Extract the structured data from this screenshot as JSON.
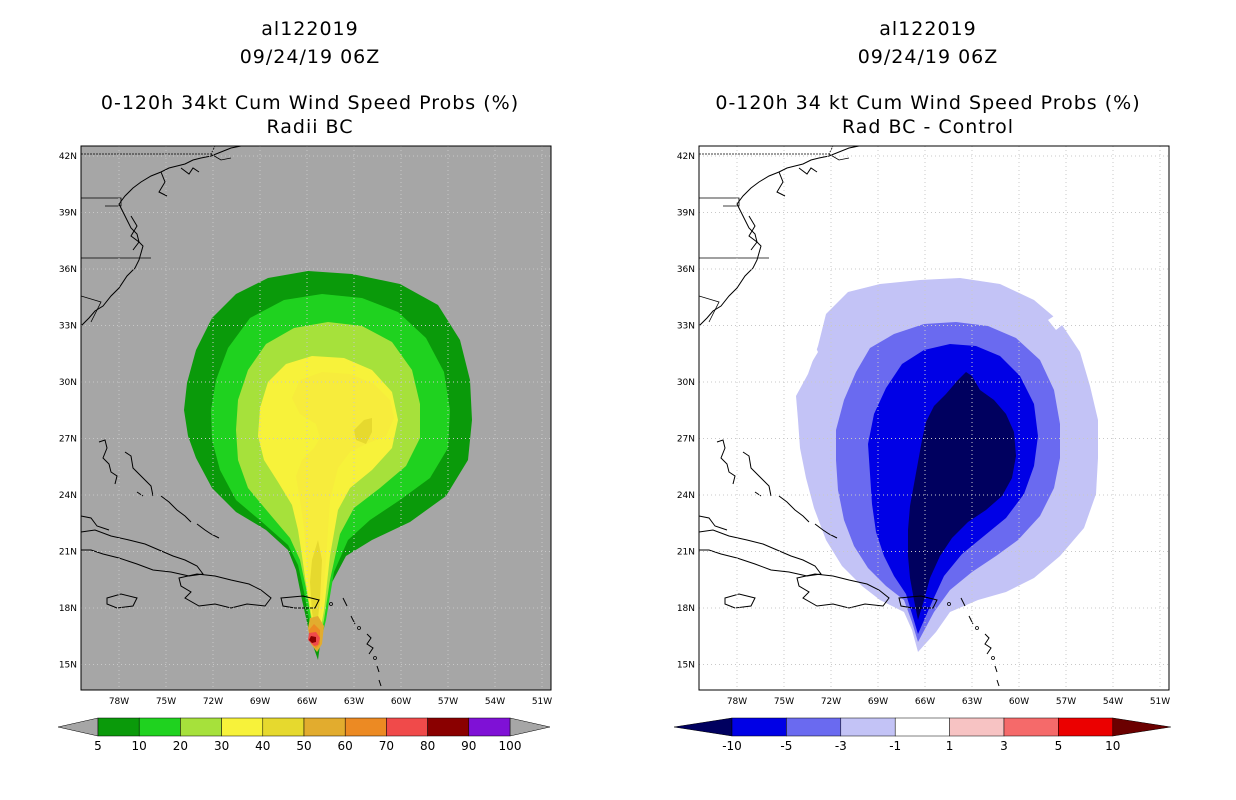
{
  "left_panel": {
    "title_line1": "al122019",
    "title_line2": "09/24/19 06Z",
    "title_line3": "0-120h 34kt Cum Wind Speed Probs (%)",
    "title_line4": "Radii BC",
    "background_color": "#a6a6a6",
    "colorbar": {
      "labels": [
        "5",
        "10",
        "20",
        "30",
        "40",
        "50",
        "60",
        "70",
        "80",
        "90",
        "100"
      ],
      "colors": [
        "#0a9a0a",
        "#1fd21f",
        "#a6e13b",
        "#f7f23a",
        "#e6d92e",
        "#e2ac2e",
        "#ec8a23",
        "#f04a4a",
        "#8a0000",
        "#7f11d6"
      ]
    }
  },
  "right_panel": {
    "title_line1": "al122019",
    "title_line2": "09/24/19 06Z",
    "title_line3": "0-120h 34 kt Cum Wind Speed Probs (%)",
    "title_line4": "Rad BC - Control",
    "background_color": "#ffffff",
    "colorbar": {
      "labels": [
        "-10",
        "-5",
        "-3",
        "-1",
        "1",
        "3",
        "5",
        "10"
      ],
      "colors": [
        "#00005f",
        "#0000e6",
        "#6a6af0",
        "#c3c3f6",
        "#ffffff",
        "#f7c3c3",
        "#f56a6a",
        "#eb0000",
        "#6b0000"
      ]
    }
  },
  "axes": {
    "lat_labels": [
      "42N",
      "39N",
      "36N",
      "33N",
      "30N",
      "27N",
      "24N",
      "21N",
      "18N",
      "15N"
    ],
    "lon_labels": [
      "78W",
      "75W",
      "72W",
      "69W",
      "66W",
      "63W",
      "60W",
      "57W",
      "54W",
      "51W"
    ]
  }
}
